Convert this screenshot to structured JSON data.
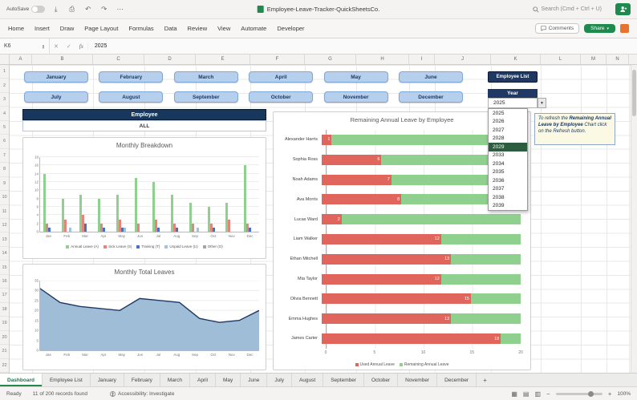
{
  "titlebar": {
    "autosave_label": "AutoSave",
    "doc_title": "Employee-Leave-Tracker-QuickSheetsCo.",
    "search_placeholder": "Search (Cmd + Ctrl + U)"
  },
  "ribbon": {
    "tabs": [
      "Home",
      "Insert",
      "Draw",
      "Page Layout",
      "Formulas",
      "Data",
      "Review",
      "View",
      "Automate",
      "Developer"
    ],
    "comments_label": "Comments",
    "share_label": "Share"
  },
  "formula_bar": {
    "cell_ref": "K6",
    "fx_label": "fx",
    "value": "2025"
  },
  "grid": {
    "column_letters": [
      "A",
      "B",
      "C",
      "D",
      "E",
      "F",
      "G",
      "H",
      "I",
      "J",
      "K",
      "L",
      "M",
      "N",
      "O"
    ],
    "row_numbers": [
      1,
      2,
      3,
      4,
      5,
      6,
      7,
      8,
      9,
      10,
      11,
      12,
      13,
      14,
      15,
      16,
      17,
      18,
      19,
      20,
      21,
      22
    ]
  },
  "dashboard": {
    "month_buttons_row1": [
      "January",
      "February",
      "March",
      "April",
      "May",
      "June"
    ],
    "month_buttons_row2": [
      "July",
      "August",
      "September",
      "October",
      "November",
      "December"
    ],
    "employee_list_button": "Employee List",
    "year_label": "Year",
    "year_value": "2025",
    "year_dropdown": {
      "items": [
        "2025",
        "2026",
        "2027",
        "2028",
        "2029",
        "2033",
        "2034",
        "2035",
        "2036",
        "2037",
        "2038",
        "2039"
      ],
      "highlighted": "2029"
    },
    "note": {
      "prefix": "To refresh the ",
      "bold": "Remaining Annual Leave by Employee",
      "suffix": " Chart click on the Refresh button."
    },
    "employee_header": "Employee",
    "employee_filter_value": "ALL"
  },
  "chart_data": [
    {
      "id": "monthly_breakdown",
      "type": "bar",
      "title": "Monthly Breakdown",
      "categories": [
        "Jan",
        "Feb",
        "Mar",
        "Apr",
        "May",
        "Jun",
        "Jul",
        "Aug",
        "Sep",
        "Oct",
        "Nov",
        "Dec"
      ],
      "series": [
        {
          "name": "Annual Leave (A)",
          "color": "#8fd08f",
          "values": [
            14,
            8,
            9,
            8,
            9,
            13,
            12,
            9,
            7,
            6,
            7,
            16
          ]
        },
        {
          "name": "Sick Leave (S)",
          "color": "#e9827a",
          "values": [
            2,
            3,
            4,
            2,
            3,
            2,
            3,
            2,
            2,
            2,
            3,
            2
          ]
        },
        {
          "name": "Training (T)",
          "color": "#4472c4",
          "values": [
            1,
            0,
            2,
            1,
            1,
            0,
            1,
            1,
            0,
            1,
            0,
            1
          ]
        },
        {
          "name": "Unpaid Leave (U)",
          "color": "#9dc3e6",
          "values": [
            0,
            1,
            0,
            0,
            1,
            0,
            0,
            0,
            1,
            0,
            0,
            0
          ]
        },
        {
          "name": "Other (O)",
          "color": "#a6a6a6",
          "values": [
            0,
            0,
            0,
            0,
            0,
            0,
            0,
            0,
            0,
            0,
            0,
            0
          ]
        }
      ],
      "ylim": [
        0,
        18
      ],
      "ytick_step": 2,
      "grid": true,
      "legend_position": "bottom"
    },
    {
      "id": "monthly_total",
      "type": "area",
      "title": "Monthly Total Leaves",
      "categories": [
        "Jan",
        "Feb",
        "Mar",
        "Apr",
        "May",
        "Jun",
        "Jul",
        "Aug",
        "Sep",
        "Oct",
        "Nov",
        "Dec"
      ],
      "values": [
        31,
        24,
        22,
        21,
        20,
        26,
        25,
        24,
        16,
        14,
        15,
        20
      ],
      "ylim": [
        0,
        35
      ],
      "ytick_step": 5,
      "line_color": "#1f3864",
      "fill_color": "#9fbdd7",
      "grid": true
    },
    {
      "id": "remaining_by_employee",
      "type": "bar",
      "title": "Remaining Annual Leave by Employee",
      "orientation": "horizontal-stacked",
      "categories": [
        "Alexander Harris",
        "Sophia Ross",
        "Noah Adams",
        "Ava Morris",
        "Lucas Ward",
        "Liam Walker",
        "Ethan Mitchell",
        "Mia Taylor",
        "Olivia Bennett",
        "Emma Hughes",
        "James Carter"
      ],
      "series": [
        {
          "name": "Used Annual Leave",
          "color": "#e0655c",
          "values": [
            1,
            6,
            7,
            8,
            2,
            12,
            13,
            12,
            15,
            13,
            18
          ]
        },
        {
          "name": "Remaining Annual Leave",
          "color": "#8fd08f",
          "values": [
            19,
            14,
            13,
            12,
            18,
            8,
            7,
            8,
            5,
            7,
            2
          ]
        }
      ],
      "xlim": [
        0,
        20
      ],
      "xticks": [
        0,
        5,
        10,
        15,
        20
      ],
      "legend_position": "bottom",
      "bar_labels": "used-series"
    }
  ],
  "sheet_tabs": {
    "tabs": [
      "Dashboard",
      "Employee List",
      "January",
      "February",
      "March",
      "April",
      "May",
      "June",
      "July",
      "August",
      "September",
      "October",
      "November",
      "December"
    ],
    "active": "Dashboard",
    "add_label": "+"
  },
  "status_bar": {
    "ready": "Ready",
    "records": "11 of 200 records found",
    "accessibility": "Accessibility: Investigate",
    "zoom": "100%"
  }
}
